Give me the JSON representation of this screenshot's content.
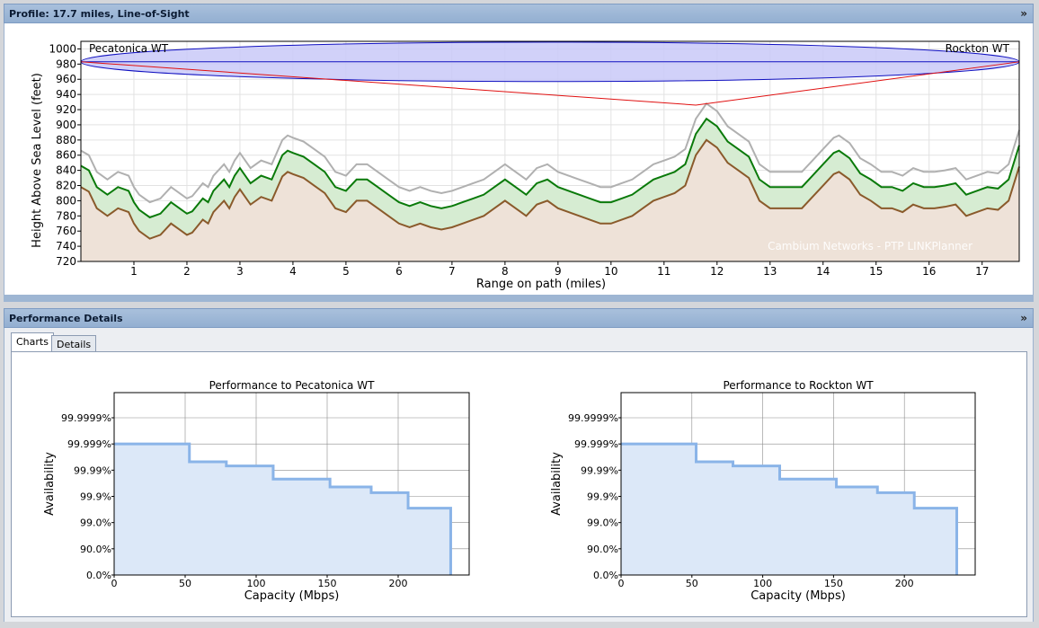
{
  "profile_panel": {
    "title": "Profile: 17.7 miles, Line-of-Sight",
    "collapse_icon": "double-chevron-up-icon"
  },
  "performance_panel": {
    "title": "Performance Details",
    "collapse_icon": "double-chevron-up-icon",
    "tabs": [
      {
        "label": "Charts",
        "active": true
      },
      {
        "label": "Details",
        "active": false
      }
    ]
  },
  "chart_data": [
    {
      "type": "area",
      "title": "",
      "left_site": "Pecatonica WT",
      "right_site": "Rockton WT",
      "xlabel": "Range on path (miles)",
      "ylabel": "Height Above Sea Level (feet)",
      "xlim": [
        0,
        17.7
      ],
      "ylim": [
        720,
        1010
      ],
      "x_ticks": [
        1,
        2,
        3,
        4,
        5,
        6,
        7,
        8,
        9,
        10,
        11,
        12,
        13,
        14,
        15,
        16,
        17
      ],
      "y_ticks": [
        720,
        740,
        760,
        780,
        800,
        820,
        840,
        860,
        880,
        900,
        920,
        940,
        960,
        980,
        1000
      ],
      "watermark": "Cambium Networks - PTP LINKPlanner",
      "grid": true,
      "colors": {
        "fresnel_fill": "#c9c9f8",
        "fresnel_stroke": "#1010c0",
        "los": "#e01010",
        "terrain": "#8a5a2b",
        "terrain_fill": "#eee2d8",
        "clutter": "#0a7a0a",
        "clutter_fill": "#d6ecd2",
        "upper": "#b0b0b0"
      },
      "los": {
        "start": [
          0,
          983
        ],
        "bend": [
          11.6,
          926
        ],
        "end": [
          17.7,
          983
        ]
      },
      "fresnel": {
        "center_height": 983,
        "mid_half_height": 26
      },
      "series": [
        {
          "x": [
            0,
            0.15,
            0.3,
            0.5,
            0.7,
            0.9,
            1.0,
            1.1,
            1.3,
            1.5,
            1.7,
            1.9,
            2.0,
            2.1,
            2.3,
            2.4,
            2.5,
            2.7,
            2.8,
            2.9,
            3.0,
            3.2,
            3.4,
            3.6,
            3.8,
            3.9,
            4.0,
            4.2,
            4.4,
            4.6,
            4.8,
            5.0,
            5.2,
            5.4,
            5.6,
            5.8,
            6.0,
            6.2,
            6.4,
            6.6,
            6.8,
            7.0,
            7.2,
            7.4,
            7.6,
            7.8,
            8.0,
            8.2,
            8.4,
            8.6,
            8.8,
            9.0,
            9.2,
            9.4,
            9.6,
            9.8,
            10.0,
            10.2,
            10.4,
            10.6,
            10.8,
            11.0,
            11.2,
            11.4,
            11.6,
            11.8,
            12.0,
            12.2,
            12.4,
            12.6,
            12.8,
            13.0,
            13.2,
            13.4,
            13.6,
            13.8,
            14.0,
            14.2,
            14.3,
            14.5,
            14.7,
            14.9,
            15.1,
            15.3,
            15.5,
            15.7,
            15.9,
            16.1,
            16.3,
            16.5,
            16.7,
            16.9,
            17.1,
            17.3,
            17.5,
            17.7
          ],
          "values": [
            818,
            812,
            790,
            780,
            790,
            785,
            770,
            760,
            750,
            755,
            770,
            760,
            755,
            758,
            775,
            770,
            785,
            800,
            790,
            805,
            815,
            795,
            805,
            800,
            832,
            838,
            835,
            830,
            820,
            810,
            790,
            785,
            800,
            800,
            790,
            780,
            770,
            765,
            770,
            765,
            762,
            765,
            770,
            775,
            780,
            790,
            800,
            790,
            780,
            795,
            800,
            790,
            785,
            780,
            775,
            770,
            770,
            775,
            780,
            790,
            800,
            805,
            810,
            820,
            860,
            880,
            870,
            850,
            840,
            830,
            800,
            790,
            790,
            790,
            790,
            805,
            820,
            835,
            838,
            828,
            808,
            800,
            790,
            790,
            785,
            795,
            790,
            790,
            792,
            795,
            780,
            785,
            790,
            788,
            800,
            845
          ]
        }
      ]
    },
    {
      "type": "line",
      "title": "Performance to Pecatonica WT",
      "xlabel": "Capacity (Mbps)",
      "ylabel": "Availability",
      "xlim": [
        0,
        250
      ],
      "x_ticks": [
        0,
        50,
        100,
        150,
        200
      ],
      "y_ticks": [
        "0.0%",
        "90.0%",
        "99.0%",
        "99.9%",
        "99.99%",
        "99.999%",
        "99.9999%"
      ],
      "grid": true,
      "color": "#8ab4e8",
      "series": [
        {
          "x": [
            0,
            53,
            53,
            79,
            79,
            112,
            112,
            152,
            152,
            181,
            181,
            207,
            207,
            237,
            237
          ],
          "values": [
            5.0,
            5.0,
            4.32,
            4.32,
            4.16,
            4.16,
            3.66,
            3.66,
            3.36,
            3.36,
            3.14,
            3.14,
            2.55,
            2.55,
            0
          ]
        }
      ]
    },
    {
      "type": "line",
      "title": "Performance to Rockton WT",
      "xlabel": "Capacity (Mbps)",
      "ylabel": "Availability",
      "xlim": [
        0,
        250
      ],
      "x_ticks": [
        0,
        50,
        100,
        150,
        200
      ],
      "y_ticks": [
        "0.0%",
        "90.0%",
        "99.0%",
        "99.9%",
        "99.99%",
        "99.999%",
        "99.9999%"
      ],
      "grid": true,
      "color": "#8ab4e8",
      "series": [
        {
          "x": [
            0,
            53,
            53,
            79,
            79,
            112,
            112,
            152,
            152,
            181,
            181,
            207,
            207,
            237,
            237
          ],
          "values": [
            5.0,
            5.0,
            4.32,
            4.32,
            4.16,
            4.16,
            3.66,
            3.66,
            3.36,
            3.36,
            3.14,
            3.14,
            2.55,
            2.55,
            0
          ]
        }
      ]
    }
  ]
}
